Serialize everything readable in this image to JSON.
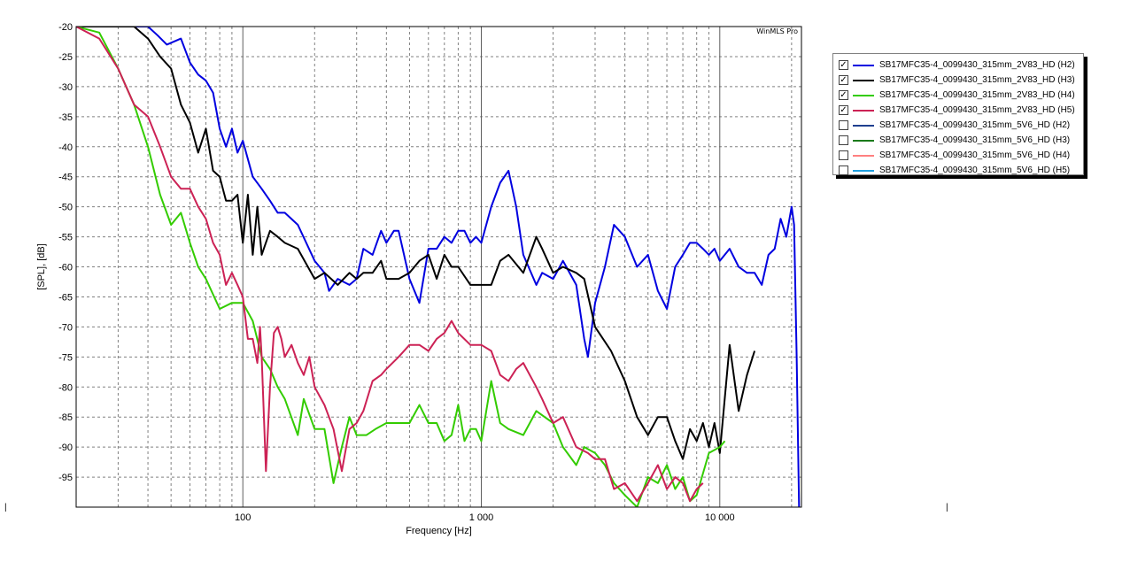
{
  "chart_data": {
    "type": "line",
    "title": "",
    "brand": "WinMLS Pro",
    "xlabel": "Frequency [Hz]",
    "ylabel": "[SPL], [dB]",
    "xscale": "log",
    "xlim": [
      20,
      22000
    ],
    "ylim": [
      -100,
      -20
    ],
    "yticks": [
      -20,
      -25,
      -30,
      -35,
      -40,
      -45,
      -50,
      -55,
      -60,
      -65,
      -70,
      -75,
      -80,
      -85,
      -90,
      -95
    ],
    "xtick_labels": [
      {
        "value": 100,
        "label": "100"
      },
      {
        "value": 1000,
        "label": "1 000"
      },
      {
        "value": 10000,
        "label": "10 000"
      }
    ],
    "grid": true,
    "legend_position": "right",
    "series": [
      {
        "name": "SB17MFC35-4_0099430_315mm_2V83_HD (H2)",
        "color": "#0000e0",
        "checked": true,
        "x": [
          35,
          40,
          44,
          48,
          55,
          60,
          65,
          70,
          75,
          80,
          85,
          90,
          95,
          100,
          110,
          120,
          130,
          140,
          150,
          170,
          200,
          220,
          230,
          250,
          280,
          300,
          320,
          350,
          380,
          400,
          430,
          450,
          500,
          550,
          600,
          650,
          700,
          750,
          800,
          850,
          900,
          950,
          1000,
          1100,
          1200,
          1300,
          1400,
          1500,
          1700,
          1800,
          2000,
          2200,
          2500,
          2700,
          2800,
          3000,
          3300,
          3600,
          4000,
          4500,
          5000,
          5500,
          6000,
          6500,
          7000,
          7500,
          8000,
          8500,
          9000,
          9500,
          10000,
          11000,
          12000,
          13000,
          14000,
          15000,
          16000,
          17000,
          18000,
          19000,
          20000,
          20500,
          21000,
          21500
        ],
        "y": [
          -20,
          -20,
          -21.5,
          -23,
          -22,
          -26,
          -28,
          -29,
          -31,
          -37,
          -40,
          -37,
          -41,
          -39,
          -45,
          -47,
          -49,
          -51,
          -51,
          -53,
          -59,
          -61,
          -64,
          -62,
          -63,
          -62,
          -57,
          -58,
          -54,
          -56,
          -54,
          -54,
          -62,
          -66,
          -57,
          -57,
          -55,
          -56,
          -54,
          -54,
          -56,
          -55,
          -56,
          -50,
          -46,
          -44,
          -50,
          -58,
          -63,
          -61,
          -62,
          -59,
          -63,
          -72,
          -75,
          -66,
          -60,
          -53,
          -55,
          -60,
          -58,
          -64,
          -67,
          -60,
          -58,
          -56,
          -56,
          -57,
          -58,
          -57,
          -59,
          -57,
          -60,
          -61,
          -61,
          -63,
          -58,
          -57,
          -52,
          -55,
          -50,
          -53,
          -75,
          -100
        ]
      },
      {
        "name": "SB17MFC35-4_0099430_315mm_2V83_HD (H3)",
        "color": "#000000",
        "checked": true,
        "x": [
          20,
          25,
          30,
          35,
          40,
          45,
          50,
          55,
          60,
          65,
          70,
          75,
          80,
          85,
          90,
          95,
          100,
          105,
          110,
          115,
          120,
          130,
          140,
          150,
          170,
          200,
          220,
          250,
          280,
          300,
          320,
          350,
          380,
          400,
          450,
          500,
          550,
          600,
          650,
          700,
          750,
          800,
          900,
          1000,
          1100,
          1200,
          1300,
          1500,
          1700,
          1800,
          2000,
          2200,
          2500,
          2700,
          3000,
          3500,
          4000,
          4500,
          5000,
          5500,
          6000,
          6500,
          7000,
          7500,
          8000,
          8500,
          9000,
          9500,
          10000,
          11000,
          12000,
          13000,
          14000
        ],
        "y": [
          -20,
          -20,
          -20,
          -20,
          -22,
          -25,
          -27,
          -33,
          -36,
          -41,
          -37,
          -44,
          -45,
          -49,
          -49,
          -48,
          -56,
          -48,
          -58,
          -50,
          -58,
          -54,
          -55,
          -56,
          -57,
          -62,
          -61,
          -63,
          -61,
          -62,
          -61,
          -61,
          -59,
          -62,
          -62,
          -61,
          -59,
          -58,
          -62,
          -58,
          -60,
          -60,
          -63,
          -63,
          -63,
          -59,
          -58,
          -61,
          -55,
          -57,
          -61,
          -60,
          -61,
          -62,
          -70,
          -74,
          -79,
          -85,
          -88,
          -85,
          -85,
          -89,
          -92,
          -87,
          -89,
          -86,
          -90,
          -86,
          -91,
          -73,
          -84,
          -78,
          -74
        ]
      },
      {
        "name": "SB17MFC35-4_0099430_315mm_2V83_HD (H4)",
        "color": "#33cc00",
        "checked": true,
        "x": [
          20,
          25,
          30,
          35,
          40,
          45,
          50,
          55,
          60,
          65,
          70,
          80,
          90,
          100,
          110,
          120,
          130,
          140,
          150,
          170,
          180,
          200,
          220,
          240,
          260,
          280,
          300,
          330,
          360,
          400,
          450,
          500,
          550,
          600,
          650,
          700,
          750,
          800,
          850,
          900,
          950,
          1000,
          1100,
          1200,
          1300,
          1500,
          1700,
          2000,
          2200,
          2500,
          2700,
          3000,
          3300,
          3600,
          4000,
          4500,
          5000,
          5500,
          6000,
          6500,
          7000,
          7500,
          8000,
          9000,
          10000,
          10500
        ],
        "y": [
          -20,
          -21,
          -27,
          -33,
          -40,
          -48,
          -53,
          -51,
          -56,
          -60,
          -62,
          -67,
          -66,
          -66,
          -69,
          -75,
          -77,
          -80,
          -82,
          -88,
          -82,
          -87,
          -87,
          -96,
          -90,
          -85,
          -88,
          -88,
          -87,
          -86,
          -86,
          -86,
          -83,
          -86,
          -86,
          -89,
          -88,
          -83,
          -89,
          -87,
          -87,
          -89,
          -79,
          -86,
          -87,
          -88,
          -84,
          -86,
          -90,
          -93,
          -90,
          -91,
          -93,
          -96,
          -98,
          -100,
          -95,
          -96,
          -93,
          -97,
          -95,
          -99,
          -98,
          -91,
          -90,
          -89
        ]
      },
      {
        "name": "SB17MFC35-4_0099430_315mm_2V83_HD (H5)",
        "color": "#cc2255",
        "checked": true,
        "x": [
          20,
          25,
          30,
          35,
          40,
          45,
          50,
          55,
          60,
          65,
          70,
          75,
          80,
          85,
          90,
          95,
          100,
          105,
          110,
          115,
          118,
          120,
          125,
          130,
          135,
          140,
          145,
          150,
          160,
          170,
          180,
          190,
          200,
          220,
          240,
          260,
          280,
          300,
          320,
          350,
          380,
          400,
          450,
          500,
          550,
          600,
          650,
          700,
          750,
          800,
          900,
          1000,
          1100,
          1200,
          1300,
          1400,
          1500,
          1700,
          1800,
          2000,
          2200,
          2500,
          2800,
          3000,
          3300,
          3600,
          4000,
          4500,
          5000,
          5500,
          6000,
          6500,
          7000,
          7500,
          8000,
          8500
        ],
        "y": [
          -20,
          -22,
          -27,
          -33,
          -35,
          -40,
          -45,
          -47,
          -47,
          -50,
          -52,
          -56,
          -58,
          -63,
          -61,
          -63,
          -65,
          -72,
          -72,
          -76,
          -70,
          -75,
          -94,
          -80,
          -71,
          -70,
          -72,
          -75,
          -73,
          -76,
          -78,
          -75,
          -80,
          -83,
          -87,
          -94,
          -87,
          -86,
          -84,
          -79,
          -78,
          -77,
          -75,
          -73,
          -73,
          -74,
          -72,
          -71,
          -69,
          -71,
          -73,
          -73,
          -74,
          -78,
          -79,
          -77,
          -76,
          -80,
          -82,
          -86,
          -85,
          -90,
          -91,
          -92,
          -92,
          -97,
          -96,
          -99,
          -96,
          -93,
          -97,
          -95,
          -96,
          -99,
          -97,
          -96
        ]
      },
      {
        "name": "SB17MFC35-4_0099430_315mm_5V6_HD (H2)",
        "color": "#1f3f8f",
        "checked": false,
        "x": [],
        "y": []
      },
      {
        "name": "SB17MFC35-4_0099430_315mm_5V6_HD (H3)",
        "color": "#1a7a1a",
        "checked": false,
        "x": [],
        "y": []
      },
      {
        "name": "SB17MFC35-4_0099430_315mm_5V6_HD (H4)",
        "color": "#ff8080",
        "checked": false,
        "x": [],
        "y": []
      },
      {
        "name": "SB17MFC35-4_0099430_315mm_5V6_HD (H5)",
        "color": "#20a0e0",
        "checked": false,
        "x": [],
        "y": []
      }
    ]
  },
  "legend": {
    "check_mark": "✓"
  }
}
